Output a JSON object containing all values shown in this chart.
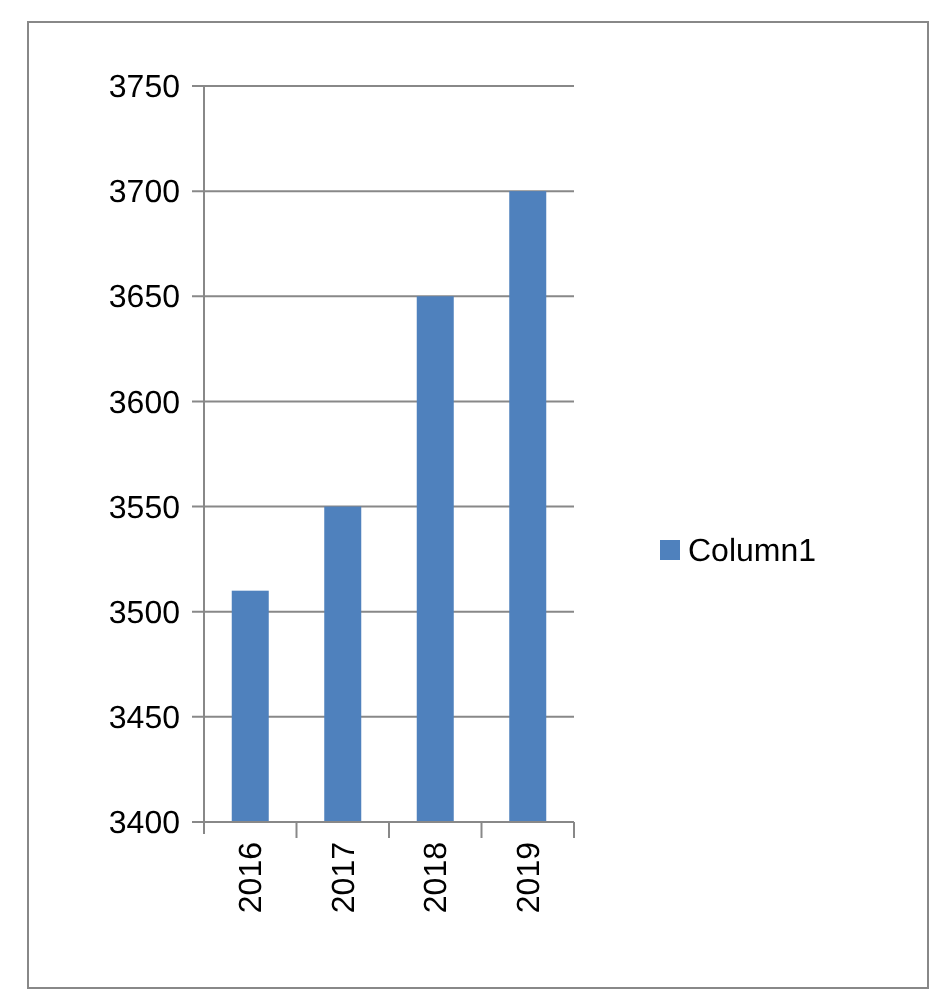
{
  "chart_data": {
    "type": "bar",
    "categories": [
      "2016",
      "2017",
      "2018",
      "2019"
    ],
    "series": [
      {
        "name": "Column1",
        "color": "#4f81bd",
        "values": [
          3510,
          3550,
          3650,
          3700
        ]
      }
    ],
    "ylim": [
      3400,
      3750
    ],
    "yticks": [
      3400,
      3450,
      3500,
      3550,
      3600,
      3650,
      3700,
      3750
    ],
    "grid": "y",
    "legend": "right"
  }
}
